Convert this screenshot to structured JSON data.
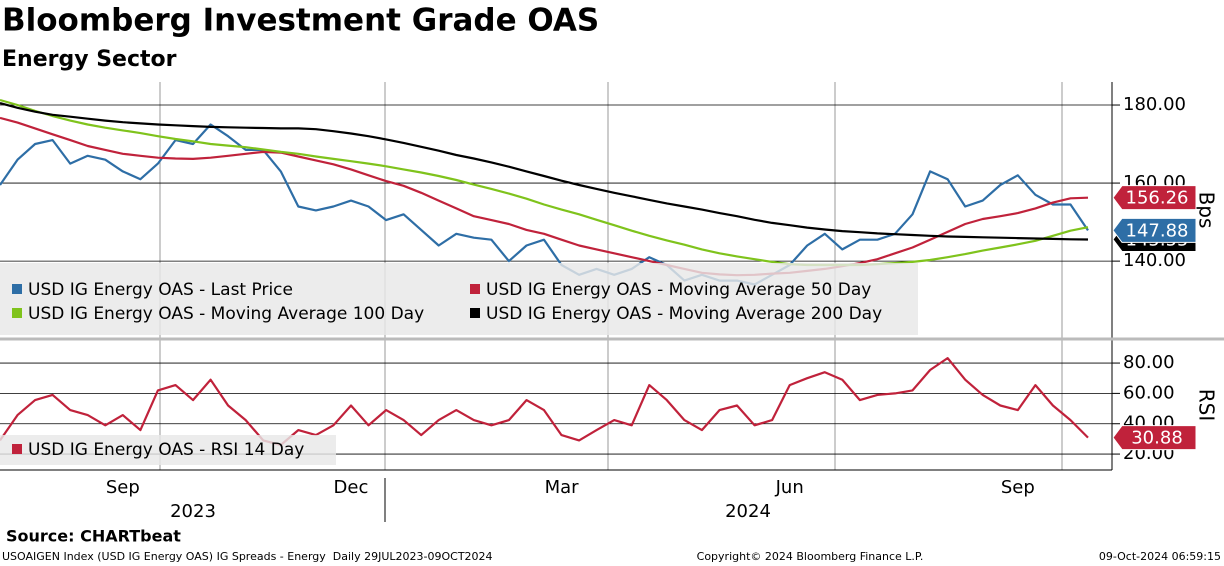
{
  "chart_data": [
    {
      "type": "line",
      "title": "Bloomberg Investment Grade OAS",
      "subtitle": "Energy Sector",
      "y_label": "Bps",
      "ylim": [
        120.3,
        185.9
      ],
      "yticks": [
        {
          "value": 140,
          "label": "140.00"
        },
        {
          "value": 160,
          "label": "160.00"
        },
        {
          "value": 180,
          "label": "180.00"
        }
      ],
      "grid": true,
      "series": [
        {
          "name": "USD IG Energy OAS - Last Price",
          "color": "#2e6ea6",
          "end_label": true,
          "values": [
            159.5,
            166,
            170,
            171,
            165,
            167,
            166,
            163,
            161,
            165,
            171,
            170,
            175,
            172,
            168.5,
            168.5,
            163,
            154,
            153,
            154,
            155.5,
            154,
            150.5,
            152,
            148,
            144,
            147,
            146,
            145.5,
            140,
            144,
            145.5,
            139,
            136.5,
            138,
            136.5,
            138,
            141,
            139,
            135,
            136.5,
            135,
            135,
            134,
            136.5,
            139,
            144,
            147,
            143,
            145.5,
            145.5,
            147,
            152,
            163,
            161,
            154,
            155.5,
            159.5,
            162,
            157,
            154.5,
            154.5,
            147.88
          ]
        },
        {
          "name": "USD IG Energy OAS - Moving Average 50 Day",
          "color": "#c0223b",
          "end_label": true,
          "values": [
            176.7,
            175.5,
            174,
            172.5,
            171,
            169.5,
            168.5,
            167.5,
            167,
            166.5,
            166.3,
            166.2,
            166.5,
            167,
            167.5,
            168,
            167.8,
            166.8,
            165.8,
            164.8,
            163.5,
            162,
            160.5,
            159.3,
            157.5,
            155.5,
            153.5,
            151.5,
            150.5,
            149.5,
            148,
            147,
            145.5,
            144,
            143,
            142,
            141,
            140,
            139,
            138,
            137,
            136.6,
            136.4,
            136.5,
            136.8,
            137,
            137.5,
            138,
            138.7,
            139.5,
            140.5,
            142,
            143.5,
            145.5,
            147.5,
            149.5,
            150.8,
            151.5,
            152.3,
            153.5,
            155,
            156.1,
            156.26
          ]
        },
        {
          "name": "USD IG Energy OAS - Moving Average 100 Day",
          "color": "#7fc31c",
          "end_label": false,
          "values": [
            181.3,
            180,
            178.5,
            177.2,
            176,
            175,
            174.2,
            173.5,
            172.8,
            172,
            171.3,
            170.7,
            170,
            169.6,
            169.2,
            168.6,
            168,
            167.5,
            166.8,
            166.2,
            165.6,
            165,
            164.3,
            163.5,
            162.7,
            161.8,
            160.8,
            159.6,
            158.5,
            157.3,
            156,
            154.5,
            153.2,
            152,
            150.6,
            149.2,
            147.8,
            146.5,
            145.3,
            144.2,
            143,
            142,
            141.2,
            140.5,
            139.8,
            139.2,
            139,
            139,
            139,
            139,
            139.2,
            139.5,
            139.8,
            140.3,
            141,
            141.8,
            142.7,
            143.5,
            144.3,
            145.2,
            146.5,
            147.8,
            148.7
          ]
        },
        {
          "name": "USD IG Energy OAS - Moving Average 200 Day",
          "color": "#000000",
          "end_label": true,
          "values": [
            180.5,
            179.3,
            178.3,
            177.5,
            177,
            176.5,
            176,
            175.6,
            175.3,
            175,
            174.8,
            174.6,
            174.4,
            174.3,
            174.2,
            174.1,
            174,
            174,
            173.8,
            173.3,
            172.7,
            172,
            171.2,
            170.3,
            169.3,
            168.3,
            167.2,
            166.3,
            165.3,
            164.2,
            163,
            161.8,
            160.6,
            159.5,
            158.5,
            157.5,
            156.6,
            155.7,
            154.8,
            154,
            153.2,
            152.3,
            151.5,
            150.6,
            149.8,
            149.2,
            148.6,
            148.1,
            147.7,
            147.4,
            147.1,
            146.9,
            146.7,
            146.5,
            146.3,
            146.2,
            146.1,
            146,
            145.9,
            145.8,
            145.7,
            145.6,
            145.55
          ]
        }
      ]
    },
    {
      "type": "line",
      "y_label": "RSI",
      "categories": [
        null,
        null,
        null,
        null,
        null,
        null,
        null,
        "Sep",
        null,
        null,
        null,
        null,
        null,
        null,
        null,
        null,
        null,
        null,
        null,
        null,
        "Dec",
        null,
        null,
        null,
        null,
        null,
        null,
        null,
        null,
        null,
        null,
        null,
        "Mar",
        null,
        null,
        null,
        null,
        null,
        null,
        null,
        null,
        null,
        null,
        null,
        null,
        "Jun",
        null,
        null,
        null,
        null,
        null,
        null,
        null,
        null,
        null,
        null,
        null,
        null,
        "Sep",
        null,
        null,
        null,
        null
      ],
      "year_labels": [
        "2023",
        "2024"
      ],
      "ylim": [
        9.5,
        95.2
      ],
      "yticks": [
        {
          "value": 20,
          "label": "20.00"
        },
        {
          "value": 40,
          "label": "40.00"
        },
        {
          "value": 60,
          "label": "60.00"
        },
        {
          "value": 80,
          "label": "80.00"
        }
      ],
      "grid": true,
      "series": [
        {
          "name": "USD IG Energy OAS - RSI 14 Day",
          "color": "#c0223b",
          "end_label": true,
          "values": [
            29,
            45.7,
            55.6,
            59,
            49,
            45.7,
            39,
            45.7,
            35.8,
            62,
            65.5,
            55.6,
            69,
            52,
            42.4,
            29,
            26,
            35.8,
            32.5,
            39,
            52,
            39,
            49,
            42.4,
            32.5,
            42.4,
            49,
            42.4,
            39,
            42.4,
            55.6,
            49,
            32.5,
            29,
            35.8,
            42.4,
            39,
            65.5,
            55.6,
            42.4,
            35.8,
            49,
            52,
            39,
            42.4,
            65.5,
            70,
            74,
            69,
            55.6,
            59,
            60,
            62,
            75.4,
            83.3,
            69,
            59,
            52,
            49,
            65.5,
            52,
            42.4,
            30.88
          ]
        }
      ]
    }
  ],
  "source": "Source: CHARTbeat",
  "footer": {
    "left": "USOAIGEN Index (USD IG Energy OAS) IG Spreads - Energy  Daily 29JUL2023-09OCT2024",
    "center": "Copyright© 2024 Bloomberg Finance L.P.",
    "right": "09-Oct-2024 06:59:15"
  }
}
